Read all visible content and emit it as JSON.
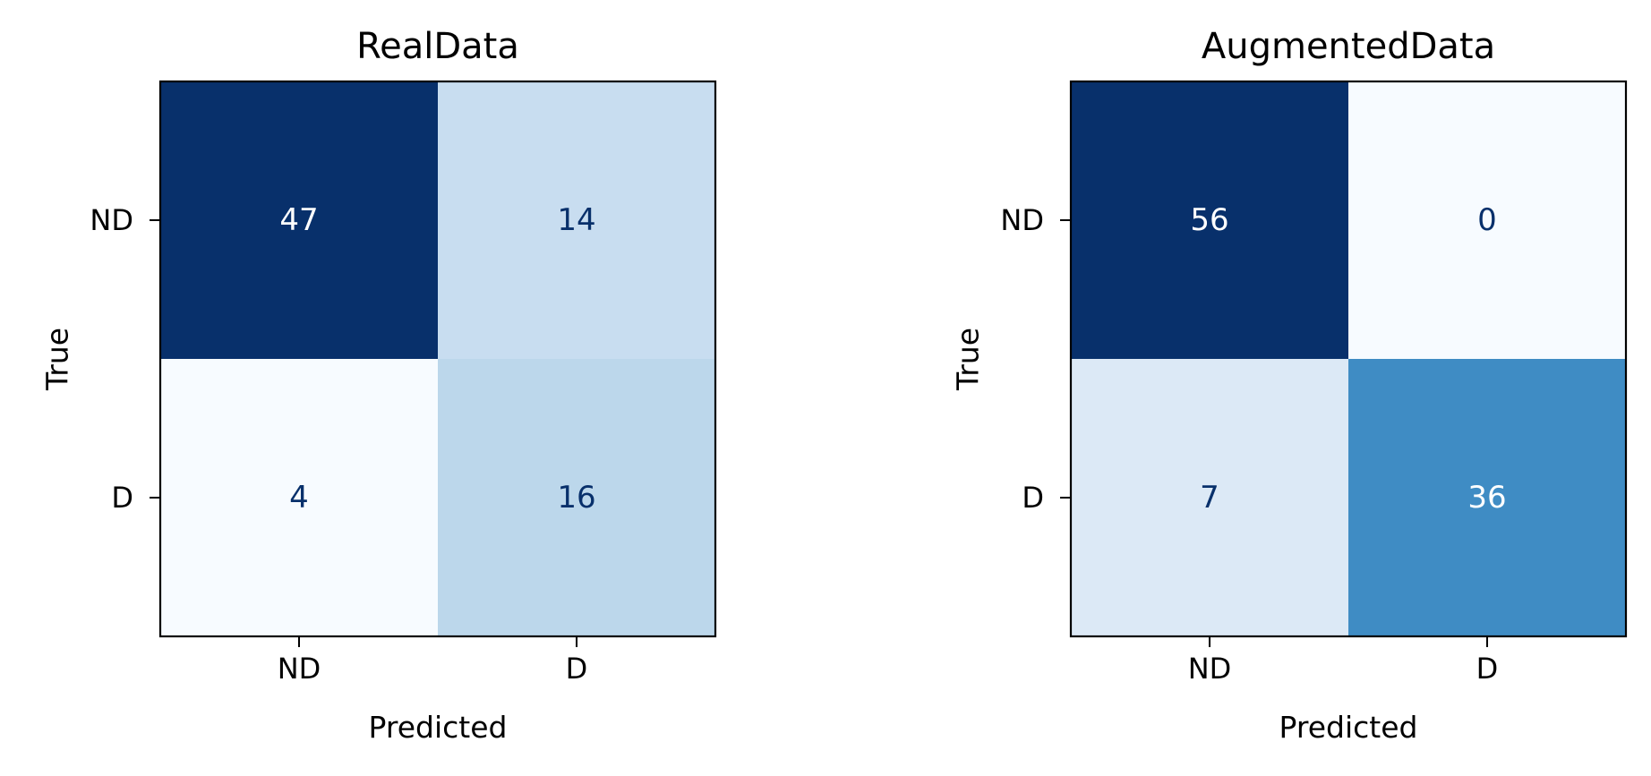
{
  "chart_data": [
    {
      "type": "heatmap",
      "title": "RealData",
      "xlabel": "Predicted",
      "ylabel": "True",
      "x_categories": [
        "ND",
        "D"
      ],
      "y_categories": [
        "ND",
        "D"
      ],
      "colormap": "Blues",
      "values": [
        [
          47,
          14
        ],
        [
          4,
          16
        ]
      ],
      "value_labels": [
        [
          "47",
          "14"
        ],
        [
          "4",
          "16"
        ]
      ],
      "cell_colors": [
        [
          "#08306b",
          "#c8ddf0"
        ],
        [
          "#f7fbff",
          "#bcd7eb"
        ]
      ],
      "label_colors": [
        [
          "#ffffff",
          "#08306b"
        ],
        [
          "#08306b",
          "#08306b"
        ]
      ]
    },
    {
      "type": "heatmap",
      "title": "AugmentedData",
      "xlabel": "Predicted",
      "ylabel": "True",
      "x_categories": [
        "ND",
        "D"
      ],
      "y_categories": [
        "ND",
        "D"
      ],
      "colormap": "Blues",
      "values": [
        [
          56,
          0
        ],
        [
          7,
          36
        ]
      ],
      "value_labels": [
        [
          "56",
          "0"
        ],
        [
          "7",
          "36"
        ]
      ],
      "cell_colors": [
        [
          "#08306b",
          "#f7fbff"
        ],
        [
          "#dce9f6",
          "#3f8cc4"
        ]
      ],
      "label_colors": [
        [
          "#ffffff",
          "#08306b"
        ],
        [
          "#08306b",
          "#ffffff"
        ]
      ]
    }
  ]
}
